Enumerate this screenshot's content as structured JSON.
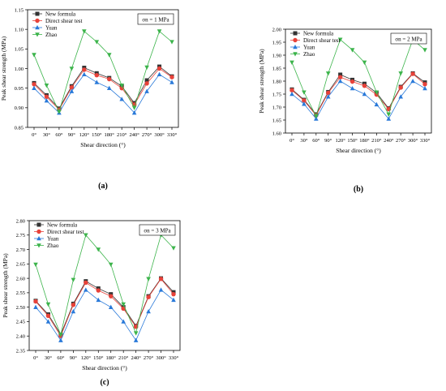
{
  "legend_entries": [
    {
      "name": "New formula",
      "color": "#333333",
      "marker": "square"
    },
    {
      "name": "Direct shear test",
      "color": "#e8423a",
      "marker": "circle"
    },
    {
      "name": "Yuan",
      "color": "#2979d9",
      "marker": "triangle-up"
    },
    {
      "name": "Zhao",
      "color": "#3cb44b",
      "marker": "triangle-down"
    }
  ],
  "chart_data": [
    {
      "type": "line",
      "panel_label": "(a)",
      "annotation": "σn = 1 MPa",
      "xlabel": "Shear direction (°)",
      "ylabel": "Peak shear strength (MPa)",
      "categories": [
        "0°",
        "30°",
        "60°",
        "90°",
        "120°",
        "150°",
        "180°",
        "210°",
        "240°",
        "270°",
        "300°",
        "330°"
      ],
      "ylim": [
        0.85,
        1.15
      ],
      "yticks": [
        "0.85",
        "0.90",
        "0.95",
        "1.00",
        "1.05",
        "1.10",
        "1.15"
      ],
      "legend_position": "top-left",
      "series": [
        {
          "name": "New formula",
          "values": [
            0.963,
            0.932,
            0.898,
            0.955,
            1.002,
            0.988,
            0.976,
            0.955,
            0.912,
            0.97,
            1.005,
            0.98
          ]
        },
        {
          "name": "Direct shear test",
          "values": [
            0.96,
            0.928,
            0.895,
            0.952,
            0.997,
            0.983,
            0.973,
            0.95,
            0.908,
            0.962,
            1.0,
            0.978
          ]
        },
        {
          "name": "Yuan",
          "values": [
            0.95,
            0.918,
            0.887,
            0.942,
            0.985,
            0.965,
            0.95,
            0.922,
            0.887,
            0.942,
            0.985,
            0.965
          ]
        },
        {
          "name": "Zhao",
          "values": [
            1.035,
            0.957,
            0.89,
            1.0,
            1.095,
            1.068,
            1.035,
            0.957,
            0.9,
            1.003,
            1.095,
            1.068
          ]
        }
      ]
    },
    {
      "type": "line",
      "panel_label": "(b)",
      "annotation": "σn = 2 MPa",
      "xlabel": "Shear direction (°)",
      "ylabel": "Peak shear strength (MPa)",
      "categories": [
        "0°",
        "30°",
        "60°",
        "90°",
        "120°",
        "150°",
        "180°",
        "210°",
        "240°",
        "270°",
        "300°",
        "330°"
      ],
      "ylim": [
        1.6,
        2.0
      ],
      "yticks": [
        "1.60",
        "1.65",
        "1.70",
        "1.75",
        "1.80",
        "1.85",
        "1.90",
        "1.95",
        "2.00"
      ],
      "legend_position": "top-left",
      "series": [
        {
          "name": "New formula",
          "values": [
            1.768,
            1.728,
            1.672,
            1.758,
            1.825,
            1.805,
            1.79,
            1.755,
            1.695,
            1.778,
            1.83,
            1.795
          ]
        },
        {
          "name": "Direct shear test",
          "values": [
            1.765,
            1.725,
            1.668,
            1.755,
            1.815,
            1.798,
            1.782,
            1.748,
            1.692,
            1.775,
            1.828,
            1.788
          ]
        },
        {
          "name": "Yuan",
          "values": [
            1.75,
            1.712,
            1.655,
            1.74,
            1.8,
            1.772,
            1.75,
            1.71,
            1.655,
            1.74,
            1.8,
            1.772
          ]
        },
        {
          "name": "Zhao",
          "values": [
            1.872,
            1.757,
            1.665,
            1.83,
            1.96,
            1.92,
            1.872,
            1.757,
            1.672,
            1.83,
            1.96,
            1.92
          ]
        }
      ]
    },
    {
      "type": "line",
      "panel_label": "(c)",
      "annotation": "σn = 3 MPa",
      "xlabel": "Shear direction (°)",
      "ylabel": "Peak shear strength (MPa)",
      "categories": [
        "0°",
        "30°",
        "60°",
        "90°",
        "120°",
        "150°",
        "180°",
        "210°",
        "240°",
        "270°",
        "300°",
        "330°"
      ],
      "ylim": [
        2.35,
        2.8
      ],
      "yticks": [
        "2.35",
        "2.40",
        "2.45",
        "2.50",
        "2.55",
        "2.60",
        "2.65",
        "2.70",
        "2.75",
        "2.80"
      ],
      "legend_position": "top-left",
      "series": [
        {
          "name": "New formula",
          "values": [
            2.522,
            2.475,
            2.405,
            2.512,
            2.59,
            2.565,
            2.545,
            2.5,
            2.435,
            2.538,
            2.6,
            2.552
          ]
        },
        {
          "name": "Direct shear test",
          "values": [
            2.52,
            2.47,
            2.4,
            2.508,
            2.585,
            2.558,
            2.538,
            2.495,
            2.432,
            2.535,
            2.598,
            2.545
          ]
        },
        {
          "name": "Yuan",
          "values": [
            2.5,
            2.45,
            2.385,
            2.485,
            2.56,
            2.525,
            2.5,
            2.45,
            2.385,
            2.485,
            2.56,
            2.525
          ]
        },
        {
          "name": "Zhao",
          "values": [
            2.648,
            2.51,
            2.405,
            2.595,
            2.75,
            2.7,
            2.648,
            2.51,
            2.41,
            2.598,
            2.75,
            2.705
          ]
        }
      ]
    }
  ]
}
